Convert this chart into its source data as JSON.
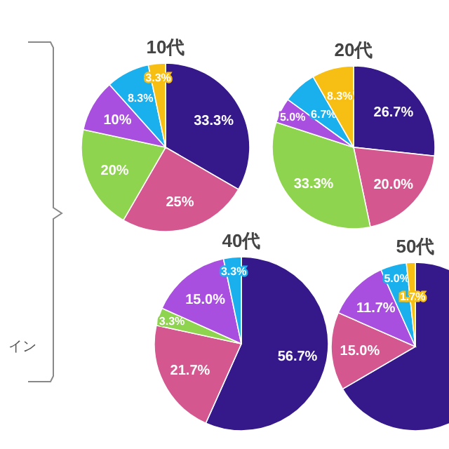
{
  "chart_data": [
    {
      "type": "pie",
      "title": "10代",
      "categories": [
        null,
        null,
        null,
        null,
        null,
        null
      ],
      "values": [
        33.3,
        25,
        20,
        10,
        8.3,
        3.3
      ],
      "colors": [
        "#35198a",
        "#d4588f",
        "#8fd44e",
        "#a94fe0",
        "#1ab0ee",
        "#f7be13"
      ],
      "value_labels": [
        "33.3%",
        "25%",
        "20%",
        "10%",
        "8.3%",
        "3.3%"
      ],
      "annotations": [
        "イン"
      ]
    },
    {
      "type": "pie",
      "title": "20代",
      "categories": [
        null,
        null,
        null,
        null,
        null,
        null
      ],
      "values": [
        26.7,
        20.0,
        33.3,
        5.0,
        6.7,
        8.3
      ],
      "colors": [
        "#35198a",
        "#d4588f",
        "#8fd44e",
        "#a94fe0",
        "#1ab0ee",
        "#f7be13"
      ],
      "value_labels": [
        "26.7%",
        "20.0%",
        "33.3%",
        "5.0%",
        "6.7%",
        "8.3%"
      ]
    },
    {
      "type": "pie",
      "title": "40代",
      "categories": [
        null,
        null,
        null,
        null,
        null
      ],
      "values": [
        56.7,
        21.7,
        3.3,
        15.0,
        3.3
      ],
      "colors": [
        "#35198a",
        "#d4588f",
        "#8fd44e",
        "#a94fe0",
        "#1ab0ee"
      ],
      "value_labels": [
        "56.7%",
        "21.7%",
        "3.3%",
        "15.0%",
        "3.3%"
      ]
    },
    {
      "type": "pie",
      "title": "50代",
      "categories": [
        null,
        null,
        null,
        null,
        null
      ],
      "values": [
        66.6,
        15.0,
        11.7,
        5.0,
        1.7
      ],
      "colors": [
        "#35198a",
        "#d4588f",
        "#a94fe0",
        "#1ab0ee",
        "#f7be13"
      ],
      "value_labels": [
        null,
        "15.0%",
        "11.7%",
        "5.0%",
        "1.7%"
      ]
    }
  ]
}
